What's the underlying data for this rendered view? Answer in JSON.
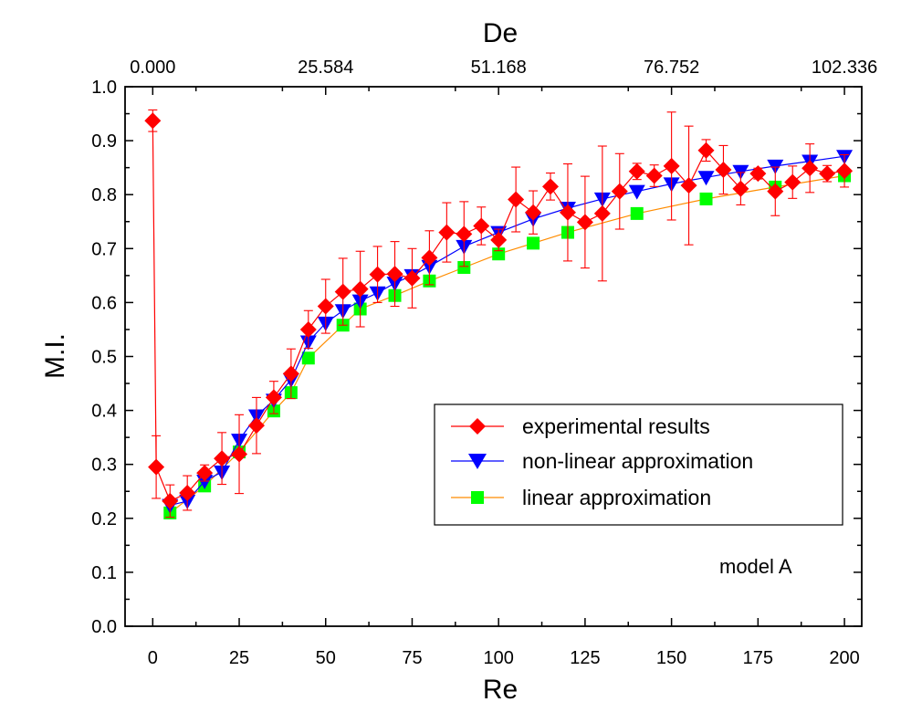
{
  "chart_data": {
    "type": "line",
    "xlabel": "Re",
    "ylabel": "M.I.",
    "top_axis_label": "De",
    "xlim": [
      -8,
      205
    ],
    "ylim": [
      0.0,
      1.0
    ],
    "x_ticks": [
      "0",
      "25",
      "50",
      "75",
      "100",
      "125",
      "150",
      "175",
      "200"
    ],
    "y_ticks": [
      "0.0",
      "0.1",
      "0.2",
      "0.3",
      "0.4",
      "0.5",
      "0.6",
      "0.7",
      "0.8",
      "0.9",
      "1.0"
    ],
    "top_ticks": [
      {
        "re": 0,
        "label": "0.000"
      },
      {
        "re": 50,
        "label": "25.584"
      },
      {
        "re": 100,
        "label": "51.168"
      },
      {
        "re": 150,
        "label": "76.752"
      },
      {
        "re": 200,
        "label": "102.336"
      }
    ],
    "annotation": "model A",
    "legend_position": "inside right",
    "grid": false,
    "series": [
      {
        "name": "experimental results",
        "color": "#ff0000",
        "marker": "diamond",
        "x": [
          0,
          1,
          5,
          10,
          15,
          20,
          25,
          30,
          35,
          40,
          45,
          50,
          55,
          60,
          65,
          70,
          75,
          80,
          85,
          90,
          95,
          100,
          105,
          110,
          115,
          120,
          125,
          130,
          135,
          140,
          145,
          150,
          155,
          160,
          165,
          170,
          175,
          180,
          185,
          190,
          195,
          200
        ],
        "y": [
          0.937,
          0.295,
          0.232,
          0.247,
          0.284,
          0.311,
          0.319,
          0.372,
          0.424,
          0.468,
          0.55,
          0.593,
          0.62,
          0.625,
          0.652,
          0.653,
          0.645,
          0.683,
          0.73,
          0.727,
          0.742,
          0.716,
          0.791,
          0.767,
          0.815,
          0.767,
          0.749,
          0.765,
          0.806,
          0.843,
          0.835,
          0.853,
          0.817,
          0.882,
          0.846,
          0.811,
          0.839,
          0.806,
          0.823,
          0.849,
          0.839,
          0.844
        ],
        "err": [
          0.02,
          0.058,
          0.03,
          0.032,
          0.015,
          0.048,
          0.073,
          0.052,
          0.03,
          0.046,
          0.035,
          0.05,
          0.062,
          0.07,
          0.052,
          0.06,
          0.055,
          0.05,
          0.055,
          0.06,
          0.035,
          0.02,
          0.06,
          0.04,
          0.025,
          0.09,
          0.085,
          0.125,
          0.07,
          0.015,
          0.02,
          0.1,
          0.11,
          0.02,
          0.045,
          0.03,
          0.01,
          0.045,
          0.03,
          0.045,
          0.015,
          0.03
        ]
      },
      {
        "name": "non-linear approximation",
        "color": "#0000ff",
        "marker": "triangle-down",
        "x": [
          5,
          10,
          15,
          20,
          25,
          30,
          35,
          40,
          45,
          50,
          55,
          60,
          65,
          70,
          75,
          80,
          90,
          100,
          110,
          120,
          130,
          140,
          150,
          160,
          170,
          180,
          190,
          200
        ],
        "y": [
          0.224,
          0.232,
          0.269,
          0.286,
          0.345,
          0.39,
          0.419,
          0.457,
          0.527,
          0.562,
          0.585,
          0.603,
          0.618,
          0.636,
          0.65,
          0.667,
          0.704,
          0.73,
          0.755,
          0.775,
          0.792,
          0.806,
          0.82,
          0.832,
          0.843,
          0.853,
          0.862,
          0.871
        ]
      },
      {
        "name": "linear approximation",
        "color": "#ff8c00",
        "marker": "square",
        "marker_color": "#00ff00",
        "x": [
          5,
          15,
          25,
          35,
          40,
          45,
          55,
          60,
          70,
          80,
          90,
          100,
          110,
          120,
          140,
          160,
          180,
          200
        ],
        "y": [
          0.21,
          0.26,
          0.323,
          0.399,
          0.433,
          0.497,
          0.558,
          0.588,
          0.613,
          0.64,
          0.665,
          0.69,
          0.71,
          0.73,
          0.765,
          0.792,
          0.814,
          0.835
        ]
      }
    ]
  }
}
